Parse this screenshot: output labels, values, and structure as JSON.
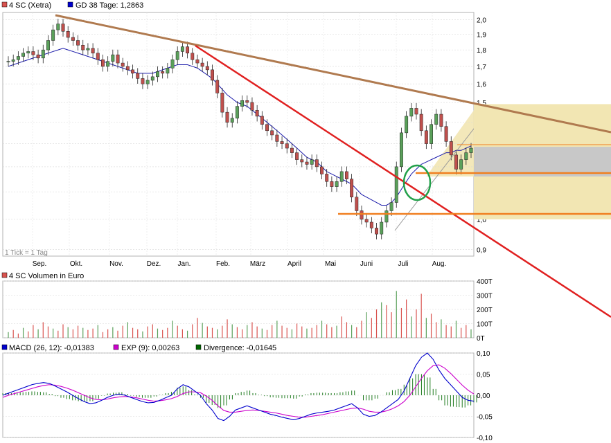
{
  "chart_data": [
    {
      "type": "candlestick",
      "legend": [
        {
          "label": "4 SC (Xetra)",
          "color": "#d9534f"
        },
        {
          "label": "GD 38 Tage: 1,2863",
          "color": "#0000cc"
        }
      ],
      "y_ticks": [
        "2,0",
        "1,9",
        "1,8",
        "1,7",
        "1,6",
        "1,5",
        "1,4",
        "1,3",
        "1,2",
        "1,1",
        "1,0",
        "0,9"
      ],
      "ylim": [
        0.88,
        2.05
      ],
      "yscale": "log",
      "x_ticks": [
        "Sep.",
        "Okt.",
        "Nov.",
        "Dez.",
        "Jan.",
        "Feb.",
        "März",
        "April",
        "Mai",
        "Juni",
        "Juli",
        "Aug."
      ],
      "note": "1 Tick = 1 Tag",
      "close_series": [
        1.73,
        1.74,
        1.76,
        1.78,
        1.79,
        1.77,
        1.75,
        1.8,
        1.86,
        1.93,
        1.97,
        1.92,
        1.88,
        1.86,
        1.83,
        1.8,
        1.81,
        1.78,
        1.74,
        1.7,
        1.73,
        1.77,
        1.72,
        1.7,
        1.68,
        1.66,
        1.63,
        1.6,
        1.62,
        1.64,
        1.67,
        1.66,
        1.69,
        1.74,
        1.79,
        1.82,
        1.78,
        1.74,
        1.72,
        1.7,
        1.68,
        1.62,
        1.55,
        1.45,
        1.4,
        1.42,
        1.48,
        1.51,
        1.5,
        1.46,
        1.43,
        1.39,
        1.36,
        1.34,
        1.31,
        1.3,
        1.28,
        1.26,
        1.23,
        1.22,
        1.21,
        1.23,
        1.2,
        1.17,
        1.14,
        1.12,
        1.14,
        1.18,
        1.15,
        1.08,
        1.03,
        1.0,
        0.99,
        0.97,
        0.95,
        0.99,
        1.03,
        1.06,
        1.2,
        1.35,
        1.43,
        1.47,
        1.44,
        1.36,
        1.3,
        1.39,
        1.44,
        1.38,
        1.31,
        1.25,
        1.19,
        1.23,
        1.26,
        1.28
      ],
      "moving_average": [
        1.7,
        1.71,
        1.72,
        1.73,
        1.74,
        1.75,
        1.76,
        1.77,
        1.78,
        1.79,
        1.8,
        1.81,
        1.8,
        1.79,
        1.78,
        1.77,
        1.76,
        1.75,
        1.74,
        1.73,
        1.72,
        1.71,
        1.7,
        1.69,
        1.68,
        1.67,
        1.66,
        1.66,
        1.66,
        1.66,
        1.67,
        1.68,
        1.69,
        1.7,
        1.71,
        1.71,
        1.71,
        1.7,
        1.69,
        1.67,
        1.65,
        1.63,
        1.6,
        1.57,
        1.54,
        1.52,
        1.5,
        1.49,
        1.48,
        1.46,
        1.44,
        1.42,
        1.4,
        1.38,
        1.36,
        1.34,
        1.32,
        1.3,
        1.28,
        1.26,
        1.24,
        1.23,
        1.22,
        1.2,
        1.18,
        1.17,
        1.16,
        1.15,
        1.14,
        1.13,
        1.11,
        1.09,
        1.08,
        1.07,
        1.06,
        1.05,
        1.05,
        1.06,
        1.08,
        1.11,
        1.14,
        1.17,
        1.19,
        1.21,
        1.22,
        1.23,
        1.24,
        1.25,
        1.26,
        1.26,
        1.27,
        1.27,
        1.28,
        1.29
      ],
      "trendlines": [
        {
          "from": [
            "Aug-28",
            2.02
          ],
          "to": [
            "Sep-25 (+)",
            1.33
          ],
          "color": "#b07a4f"
        },
        {
          "from": [
            "Jan-14",
            1.84
          ],
          "to": [
            "Dec (+)",
            0.83
          ],
          "color": "#e02020"
        },
        {
          "from": [
            "Jul-01",
            0.92
          ],
          "to": [
            "Aug-31",
            1.47
          ],
          "color": "#999999"
        }
      ],
      "horizontal_lines": [
        {
          "value": 1.0,
          "color": "#f07f20"
        },
        {
          "value": 1.16,
          "color": "#f07f20"
        },
        {
          "value": 1.286,
          "color": "#f07f20"
        }
      ]
    },
    {
      "type": "bar",
      "legend": [
        {
          "label": "4 SC Volumen in Euro",
          "color": "#d9534f"
        }
      ],
      "y_ticks": [
        "400T",
        "300T",
        "200T",
        "100T",
        "0T"
      ],
      "ylim": [
        0,
        400000
      ],
      "values": [
        40,
        55,
        30,
        70,
        45,
        90,
        60,
        110,
        80,
        65,
        50,
        95,
        75,
        60,
        85,
        70,
        55,
        65,
        90,
        40,
        60,
        75,
        50,
        85,
        110,
        70,
        60,
        45,
        80,
        95,
        65,
        55,
        70,
        120,
        85,
        60,
        50,
        95,
        140,
        105,
        80,
        70,
        60,
        85,
        130,
        95,
        75,
        60,
        90,
        110,
        80,
        65,
        55,
        90,
        120,
        85,
        70,
        60,
        100,
        80,
        65,
        70,
        90,
        120,
        95,
        75,
        85,
        150,
        110,
        90,
        75,
        120,
        180,
        140,
        200,
        250,
        230,
        180,
        330,
        210,
        270,
        150,
        200,
        310,
        140,
        170,
        110,
        130,
        90,
        80,
        120,
        70,
        90,
        60
      ]
    },
    {
      "type": "line",
      "legend": [
        {
          "label": "MACD (26, 12): -0,01383",
          "color": "#0000cc"
        },
        {
          "label": "EXP (9): 0,00263",
          "color": "#cc00cc"
        },
        {
          "label": "Divergence: -0,01645",
          "color": "#006600"
        }
      ],
      "y_ticks": [
        "0,10",
        "0,05",
        "0,00",
        "-0,05",
        "-0,10"
      ],
      "ylim": [
        -0.1,
        0.1
      ],
      "macd": [
        0.0,
        0.005,
        0.01,
        0.015,
        0.02,
        0.025,
        0.028,
        0.03,
        0.028,
        0.022,
        0.015,
        0.008,
        0.0,
        -0.008,
        -0.015,
        -0.02,
        -0.018,
        -0.012,
        -0.005,
        0.0,
        0.003,
        0.0,
        -0.005,
        -0.01,
        -0.015,
        -0.018,
        -0.017,
        -0.012,
        -0.006,
        0.0,
        0.015,
        0.025,
        0.02,
        0.01,
        0.0,
        -0.02,
        -0.035,
        -0.055,
        -0.06,
        -0.05,
        -0.035,
        -0.03,
        -0.025,
        -0.03,
        -0.035,
        -0.04,
        -0.045,
        -0.048,
        -0.052,
        -0.055,
        -0.058,
        -0.055,
        -0.05,
        -0.045,
        -0.042,
        -0.04,
        -0.038,
        -0.035,
        -0.03,
        -0.025,
        -0.02,
        -0.03,
        -0.045,
        -0.05,
        -0.048,
        -0.04,
        -0.03,
        -0.02,
        -0.01,
        0.01,
        0.04,
        0.07,
        0.09,
        0.1,
        0.085,
        0.06,
        0.04,
        0.025,
        0.01,
        -0.005,
        -0.012,
        -0.014
      ],
      "signal": [
        -0.005,
        0.0,
        0.004,
        0.008,
        0.012,
        0.016,
        0.02,
        0.023,
        0.025,
        0.024,
        0.021,
        0.017,
        0.012,
        0.006,
        0.0,
        -0.006,
        -0.01,
        -0.011,
        -0.009,
        -0.006,
        -0.004,
        -0.003,
        -0.004,
        -0.006,
        -0.009,
        -0.012,
        -0.014,
        -0.013,
        -0.011,
        -0.008,
        -0.003,
        0.004,
        0.008,
        0.008,
        0.006,
        -0.002,
        -0.012,
        -0.025,
        -0.036,
        -0.04,
        -0.04,
        -0.038,
        -0.036,
        -0.035,
        -0.036,
        -0.038,
        -0.04,
        -0.042,
        -0.045,
        -0.048,
        -0.05,
        -0.052,
        -0.052,
        -0.05,
        -0.048,
        -0.046,
        -0.043,
        -0.04,
        -0.037,
        -0.034,
        -0.031,
        -0.03,
        -0.033,
        -0.038,
        -0.04,
        -0.04,
        -0.037,
        -0.032,
        -0.025,
        -0.015,
        0.0,
        0.02,
        0.04,
        0.058,
        0.07,
        0.072,
        0.064,
        0.052,
        0.038,
        0.024,
        0.012,
        0.003
      ]
    }
  ]
}
